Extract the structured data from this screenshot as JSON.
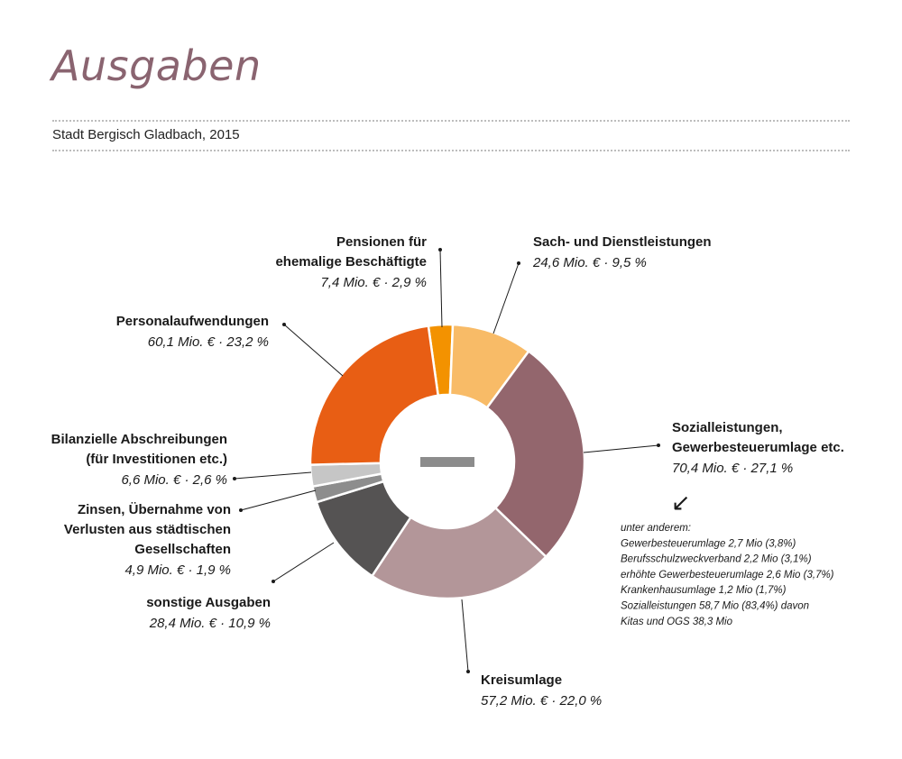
{
  "title": "Ausgaben",
  "subtitle": "Stadt Bergisch Gladbach, 2015",
  "center_mark_color": "#8c8c8c",
  "chart_data": {
    "type": "pie",
    "donut": true,
    "unit": "Mio. €",
    "slices": [
      {
        "key": "pensionen",
        "name": [
          "Pensionen für",
          "ehemalige Beschäftigte"
        ],
        "value": 7.4,
        "percent": 2.9,
        "value_label": "7,4 Mio. € · 2,9 %",
        "color": "#f39200"
      },
      {
        "key": "sach",
        "name": [
          "Sach- und Dienstleistungen"
        ],
        "value": 24.6,
        "percent": 9.5,
        "value_label": "24,6 Mio. € · 9,5 %",
        "color": "#f8bb67"
      },
      {
        "key": "sozial",
        "name": [
          "Sozialleistungen,",
          "Gewerbesteuerumlage etc."
        ],
        "value": 70.4,
        "percent": 27.1,
        "value_label": "70,4 Mio. € · 27,1 %",
        "color": "#93666d"
      },
      {
        "key": "kreis",
        "name": [
          "Kreisumlage"
        ],
        "value": 57.2,
        "percent": 22.0,
        "value_label": "57,2 Mio. € · 22,0 %",
        "color": "#b39699"
      },
      {
        "key": "sonstige",
        "name": [
          "sonstige Ausgaben"
        ],
        "value": 28.4,
        "percent": 10.9,
        "value_label": "28,4 Mio. € · 10,9 %",
        "color": "#555353"
      },
      {
        "key": "zinsen",
        "name": [
          "Zinsen, Übernahme von",
          "Verlusten aus städtischen",
          "Gesellschaften"
        ],
        "value": 4.9,
        "percent": 1.9,
        "value_label": "4,9 Mio. € · 1,9 %",
        "color": "#8d8d8d"
      },
      {
        "key": "abschreibungen",
        "name": [
          "Bilanzielle Abschreibungen",
          "(für Investitionen etc.)"
        ],
        "value": 6.6,
        "percent": 2.6,
        "value_label": "6,6 Mio. € · 2,6 %",
        "color": "#c6c6c6"
      },
      {
        "key": "personal",
        "name": [
          "Personalaufwendungen"
        ],
        "value": 60.1,
        "percent": 23.2,
        "value_label": "60,1 Mio. € · 23,2 %",
        "color": "#e85e14"
      }
    ],
    "annotation": {
      "arrow": "↙",
      "lines": [
        "unter anderem:",
        "Gewerbesteuerumlage 2,7 Mio (3,8%)",
        "Berufsschulzweckverband 2,2 Mio (3,1%)",
        "erhöhte Gewerbesteuerumlage 2,6 Mio (3,7%)",
        "Krankenhausumlage 1,2 Mio (1,7%)",
        "Sozialleistungen 58,7 Mio (83,4%) davon",
        "Kitas und OGS 38,3 Mio"
      ]
    }
  }
}
